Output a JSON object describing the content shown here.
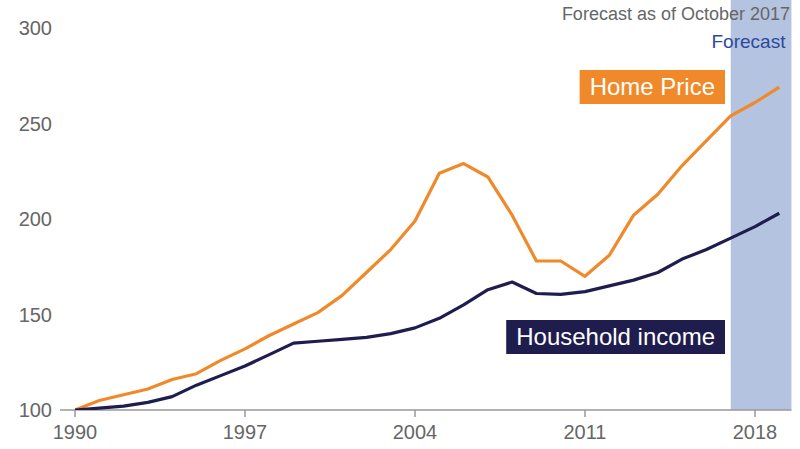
{
  "chart_data": {
    "type": "line",
    "title": "Forecast as of October 2017",
    "x": [
      1990,
      1991,
      1992,
      1993,
      1994,
      1995,
      1996,
      1997,
      1998,
      1999,
      2000,
      2001,
      2002,
      2003,
      2004,
      2005,
      2006,
      2007,
      2008,
      2009,
      2010,
      2011,
      2012,
      2013,
      2014,
      2015,
      2016,
      2017,
      2018,
      2019
    ],
    "series": [
      {
        "name": "Home Price",
        "color": "#f0892a",
        "values": [
          100,
          105,
          108,
          111,
          116,
          119,
          126,
          132,
          139,
          145,
          151,
          160,
          172,
          184,
          199,
          224,
          229,
          222,
          202,
          178,
          178,
          170,
          181,
          202,
          213,
          228,
          241,
          254,
          261,
          269
        ]
      },
      {
        "name": "Household income",
        "color": "#1f1d4d",
        "values": [
          100,
          101,
          102,
          104,
          107,
          113,
          118,
          123,
          129,
          135,
          136,
          137,
          138,
          140,
          143,
          148,
          155,
          163,
          167,
          161,
          160.5,
          162,
          165,
          168,
          172,
          179,
          184,
          190,
          196,
          203
        ]
      }
    ],
    "xlim": [
      1990,
      2019.5
    ],
    "xticks": [
      1990,
      1997,
      2004,
      2011,
      2018
    ],
    "ylim": [
      100,
      300
    ],
    "yticks": [
      100,
      150,
      200,
      250,
      300
    ],
    "grid": false,
    "annotations": [
      {
        "text": "Forecast",
        "x": [
          2017,
          2019.5
        ],
        "color": "#b4c3e0"
      }
    ]
  }
}
